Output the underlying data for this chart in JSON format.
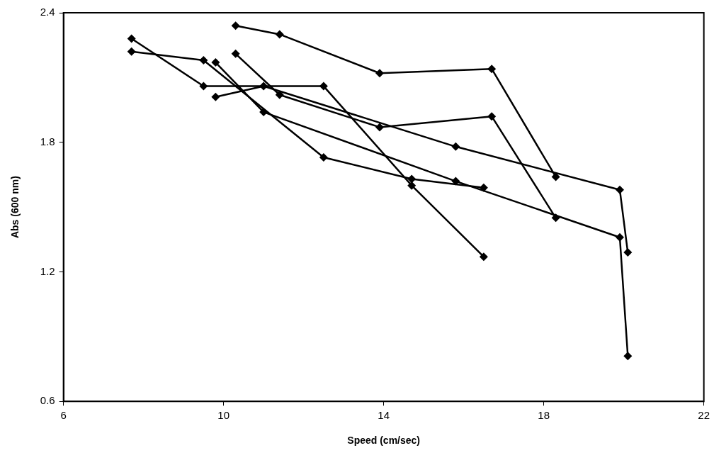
{
  "chart_data": {
    "type": "line",
    "xlabel": "Speed (cm/sec)",
    "ylabel": "Abs (600 nm)",
    "xlim": [
      6,
      22
    ],
    "xticks": [
      6,
      10,
      14,
      18,
      22
    ],
    "ylim": [
      0.6,
      2.4
    ],
    "yticks": [
      0.6,
      1.2,
      1.8,
      2.4
    ],
    "grid": false,
    "legend": false,
    "marker": "diamond",
    "line_style": "solid",
    "series": [
      {
        "color": "#000000",
        "x": [
          10.3,
          11.4,
          13.9,
          16.7,
          18.3
        ],
        "values": [
          2.34,
          2.3,
          2.12,
          2.14,
          1.64
        ]
      },
      {
        "color": "#000000",
        "x": [
          10.3,
          11.4,
          13.9,
          16.7,
          18.3
        ],
        "values": [
          2.21,
          2.02,
          1.87,
          1.92,
          1.45
        ]
      },
      {
        "color": "#000000",
        "x": [
          7.7,
          9.5,
          12.5,
          14.7,
          16.5
        ],
        "values": [
          2.28,
          2.06,
          2.06,
          1.6,
          1.27
        ]
      },
      {
        "color": "#000000",
        "x": [
          7.7,
          9.5,
          12.5,
          14.7,
          16.5
        ],
        "values": [
          2.22,
          2.18,
          1.73,
          1.63,
          1.59
        ]
      },
      {
        "color": "#000000",
        "x": [
          9.8,
          11.0,
          15.8,
          19.9,
          20.1
        ],
        "values": [
          2.17,
          1.94,
          1.62,
          1.36,
          0.81
        ]
      },
      {
        "color": "#000000",
        "x": [
          9.8,
          11.0,
          15.8,
          19.9,
          20.1
        ],
        "values": [
          2.01,
          2.06,
          1.78,
          1.58,
          1.29
        ]
      }
    ]
  }
}
